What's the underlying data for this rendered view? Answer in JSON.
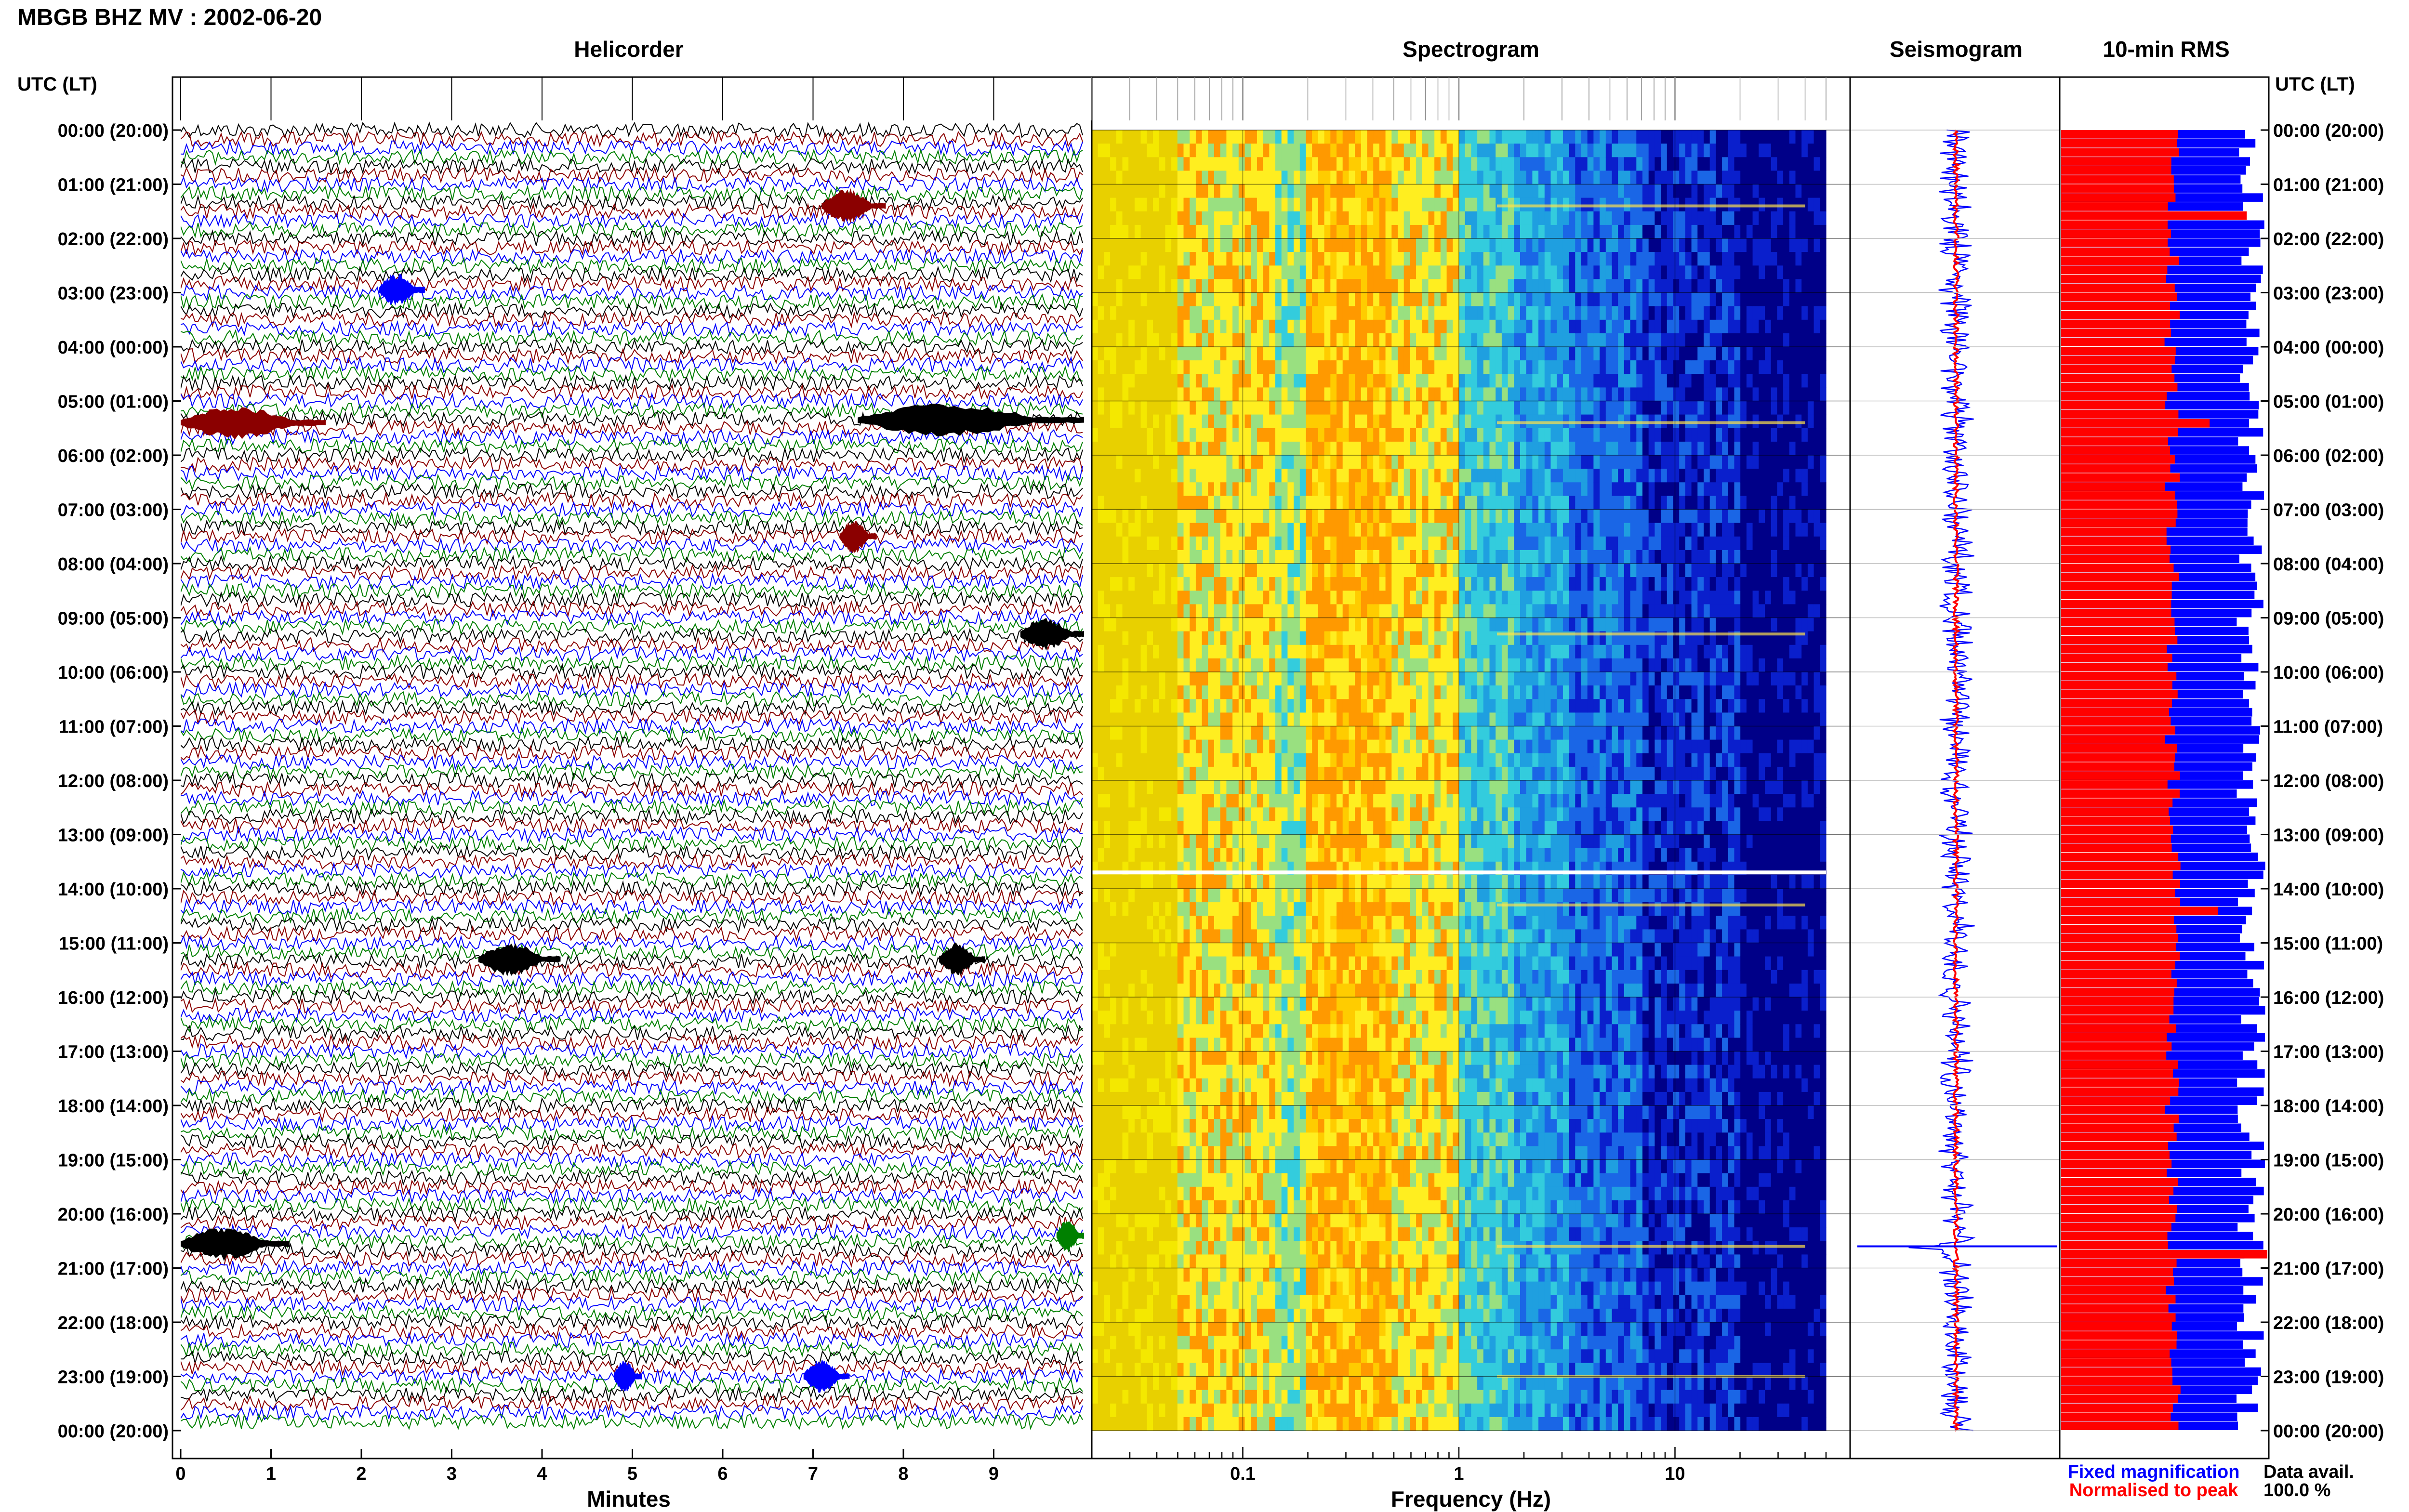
{
  "header": {
    "title": "MBGB BHZ MV : 2002-06-20",
    "utc_label": "UTC (LT)"
  },
  "panels": {
    "helicorder": "Helicorder",
    "spectrogram": "Spectrogram",
    "seismogram": "Seismogram",
    "rms": "10-min RMS"
  },
  "footer": {
    "legend_fixed": "Fixed magnification",
    "legend_normalised": "Normalised to peak",
    "data_avail_label": "Data avail.",
    "data_avail_value": "100.0 %"
  },
  "colors": {
    "trace_cycle": [
      "#000000",
      "#8b0000",
      "#0000ff",
      "#008000"
    ],
    "fixed": "#0000ff",
    "normalised": "#ff0000"
  },
  "chart_data": [
    {
      "type": "line",
      "panel": "helicorder",
      "xlabel": "Minutes",
      "x_ticks": [
        "0",
        "1",
        "2",
        "3",
        "4",
        "5",
        "6",
        "7",
        "8",
        "9"
      ],
      "xlim": [
        0,
        10
      ],
      "time_labels": [
        "00:00 (20:00)",
        "01:00 (21:00)",
        "02:00 (22:00)",
        "03:00 (23:00)",
        "04:00 (00:00)",
        "05:00 (01:00)",
        "06:00 (02:00)",
        "07:00 (03:00)",
        "08:00 (04:00)",
        "09:00 (05:00)",
        "10:00 (06:00)",
        "11:00 (07:00)",
        "12:00 (08:00)",
        "13:00 (09:00)",
        "14:00 (10:00)",
        "15:00 (11:00)",
        "16:00 (12:00)",
        "17:00 (13:00)",
        "18:00 (14:00)",
        "19:00 (15:00)",
        "20:00 (16:00)",
        "21:00 (17:00)",
        "22:00 (18:00)",
        "23:00 (19:00)",
        "00:00 (20:00)"
      ],
      "events": [
        {
          "hour": 1.4,
          "minute": 7.1,
          "duration": 0.7,
          "color": "#8b0000"
        },
        {
          "hour": 2.95,
          "minute": 2.2,
          "duration": 0.5,
          "color": "#0000ff"
        },
        {
          "hour": 5.4,
          "minute": 0.0,
          "duration": 1.6,
          "color": "#8b0000"
        },
        {
          "hour": 5.35,
          "minute": 7.5,
          "duration": 2.5,
          "color": "#000000"
        },
        {
          "hour": 7.5,
          "minute": 7.3,
          "duration": 0.4,
          "color": "#8b0000"
        },
        {
          "hour": 9.3,
          "minute": 9.3,
          "duration": 0.7,
          "color": "#000000"
        },
        {
          "hour": 15.3,
          "minute": 3.3,
          "duration": 0.9,
          "color": "#000000"
        },
        {
          "hour": 15.3,
          "minute": 8.4,
          "duration": 0.5,
          "color": "#000000"
        },
        {
          "hour": 20.55,
          "minute": 0.0,
          "duration": 1.2,
          "color": "#000000"
        },
        {
          "hour": 20.4,
          "minute": 9.7,
          "duration": 0.3,
          "color": "#008000"
        },
        {
          "hour": 23.0,
          "minute": 4.8,
          "duration": 0.3,
          "color": "#0000ff"
        },
        {
          "hour": 23.0,
          "minute": 6.9,
          "duration": 0.5,
          "color": "#0000ff"
        }
      ]
    },
    {
      "type": "heatmap",
      "panel": "spectrogram",
      "xlabel": "Frequency (Hz)",
      "x_scale": "log",
      "x_ticks": [
        "0.1",
        "1",
        "10"
      ],
      "xlim": [
        0.02,
        50
      ],
      "colormap": [
        "#e8d000",
        "#f4e800",
        "#ffcc00",
        "#ff9900",
        "#ffee20",
        "#99e080",
        "#33ccdd",
        "#1f9fe0",
        "#1a66e6",
        "#0a1fcc",
        "#000088"
      ],
      "bright_bands": [
        1.4,
        5.4,
        9.3,
        14.3,
        20.6,
        23.0
      ],
      "gap_hour": 13.7
    },
    {
      "type": "line",
      "panel": "seismogram",
      "series": [
        {
          "name": "Fixed magnification",
          "color": "#0000ff"
        },
        {
          "name": "Normalised to peak",
          "color": "#ff0000"
        }
      ],
      "peak_hour": 20.6
    },
    {
      "type": "bar",
      "panel": "10-min RMS",
      "orientation": "horizontal",
      "series": [
        {
          "name": "Normalised to peak",
          "color": "#ff0000"
        },
        {
          "name": "Fixed magnification",
          "color": "#0000ff"
        }
      ],
      "red_peaks": [
        {
          "hour": 1.5,
          "value": 0.9
        },
        {
          "hour": 5.4,
          "value": 0.72
        },
        {
          "hour": 14.4,
          "value": 0.76
        },
        {
          "hour": 20.6,
          "value": 1.0
        },
        {
          "hour": 23.0,
          "value": 0.54
        }
      ],
      "blue_level_range": [
        0.85,
        0.99
      ]
    }
  ]
}
